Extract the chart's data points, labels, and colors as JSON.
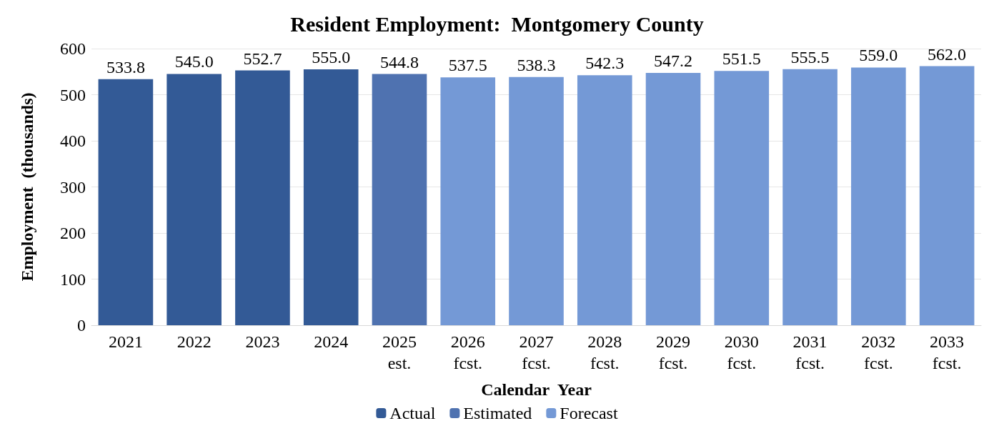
{
  "chart_data": {
    "type": "bar",
    "title": "Resident Employment:  Montgomery County",
    "xlabel": "Calendar  Year",
    "ylabel": "Employment  (thousands)",
    "categories": [
      "2021",
      "2022",
      "2023",
      "2024",
      "2025\nest.",
      "2026\nfcst.",
      "2027\nfcst.",
      "2028\nfcst.",
      "2029\nfcst.",
      "2030\nfcst.",
      "2031\nfcst.",
      "2032\nfcst.",
      "2033\nfcst."
    ],
    "series": [
      {
        "name": "Actual",
        "color": "#335a96",
        "values": [
          533.8,
          545.0,
          552.7,
          555.0,
          null,
          null,
          null,
          null,
          null,
          null,
          null,
          null,
          null
        ],
        "value_labels": [
          "533.8",
          "545.0",
          "552.7",
          "555.0",
          null,
          null,
          null,
          null,
          null,
          null,
          null,
          null,
          null
        ]
      },
      {
        "name": "Estimated",
        "color": "#4f72b0",
        "values": [
          null,
          null,
          null,
          null,
          544.8,
          null,
          null,
          null,
          null,
          null,
          null,
          null,
          null
        ],
        "value_labels": [
          null,
          null,
          null,
          null,
          "544.8",
          null,
          null,
          null,
          null,
          null,
          null,
          null,
          null
        ]
      },
      {
        "name": "Forecast",
        "color": "#7499d6",
        "values": [
          null,
          null,
          null,
          null,
          null,
          537.5,
          538.3,
          542.3,
          547.2,
          551.5,
          555.5,
          559.0,
          562.0
        ],
        "value_labels": [
          null,
          null,
          null,
          null,
          null,
          "537.5",
          "538.3",
          "542.3",
          "547.2",
          "551.5",
          "555.5",
          "559.0",
          "562.0"
        ]
      }
    ],
    "ylim": [
      0,
      600
    ],
    "yticks": [
      0,
      100,
      200,
      300,
      400,
      500,
      600
    ],
    "grid": "y",
    "legend": "bottom"
  }
}
